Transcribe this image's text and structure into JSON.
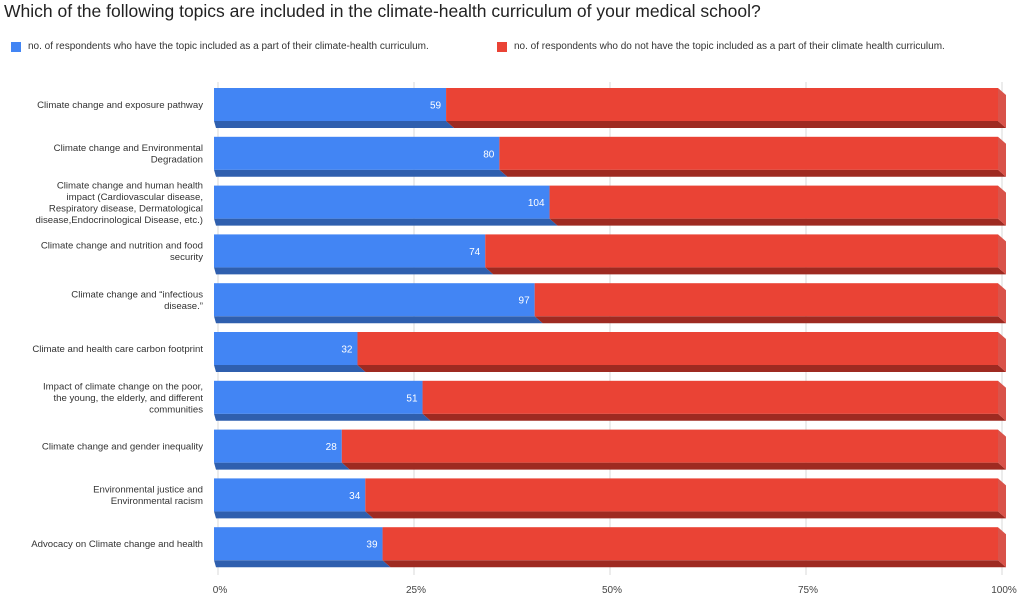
{
  "chart_data": {
    "type": "bar",
    "orientation": "horizontal",
    "stacked": "100%",
    "title": "Which of the following topics are included in the climate-health curriculum of your medical school?",
    "categories": [
      "Climate change and exposure pathway",
      "Climate change and Environmental Degradation",
      "Climate change and human health impact (Cardiovascular disease, Respiratory disease, Dermatological disease,Endocrinological Disease, etc.)",
      "Climate change and nutrition and food security",
      "Climate change and “infectious disease.”",
      "Climate and health care carbon footprint",
      "Impact of climate change on the poor, the young, the elderly, and different communities",
      "Climate change and gender inequality",
      "Environmental justice and Environmental racism",
      "Advocacy on Climate change and health"
    ],
    "category_label_lines": [
      [
        "Climate change and exposure pathway"
      ],
      [
        "Climate change and Environmental",
        "Degradation"
      ],
      [
        "Climate change and human health",
        "impact (Cardiovascular disease,",
        "Respiratory disease, Dermatological",
        "disease,Endocrinological Disease, etc.)"
      ],
      [
        "Climate change and nutrition and food",
        "security"
      ],
      [
        "Climate change and “infectious",
        "disease.”"
      ],
      [
        "Climate and health care carbon footprint"
      ],
      [
        "Impact of climate change on the poor,",
        "the young, the elderly, and different",
        "communities"
      ],
      [
        "Climate change and gender inequality"
      ],
      [
        "Environmental justice and",
        "Environmental racism"
      ],
      [
        "Advocacy on Climate change and health"
      ]
    ],
    "series": [
      {
        "name": "no. of respondents who have the topic included as a part of their climate-health curriculum.",
        "color": "#4285f4",
        "values": [
          59,
          80,
          104,
          74,
          97,
          32,
          51,
          28,
          34,
          39
        ],
        "percent": [
          29.6,
          36.4,
          42.8,
          34.6,
          40.9,
          18.3,
          26.6,
          16.3,
          19.3,
          21.5
        ]
      },
      {
        "name": "no. of respondents who do not have the topic included as a part of their climate health curriculum.",
        "color": "#ea4335",
        "percent": [
          70.4,
          63.6,
          57.2,
          65.4,
          59.1,
          81.7,
          73.4,
          83.7,
          80.7,
          78.5
        ]
      }
    ],
    "x_ticks": [
      "0%",
      "25%",
      "50%",
      "75%",
      "100%"
    ],
    "xlim": [
      0,
      100
    ],
    "grid": true,
    "legend_position": "top",
    "three_d": true
  }
}
